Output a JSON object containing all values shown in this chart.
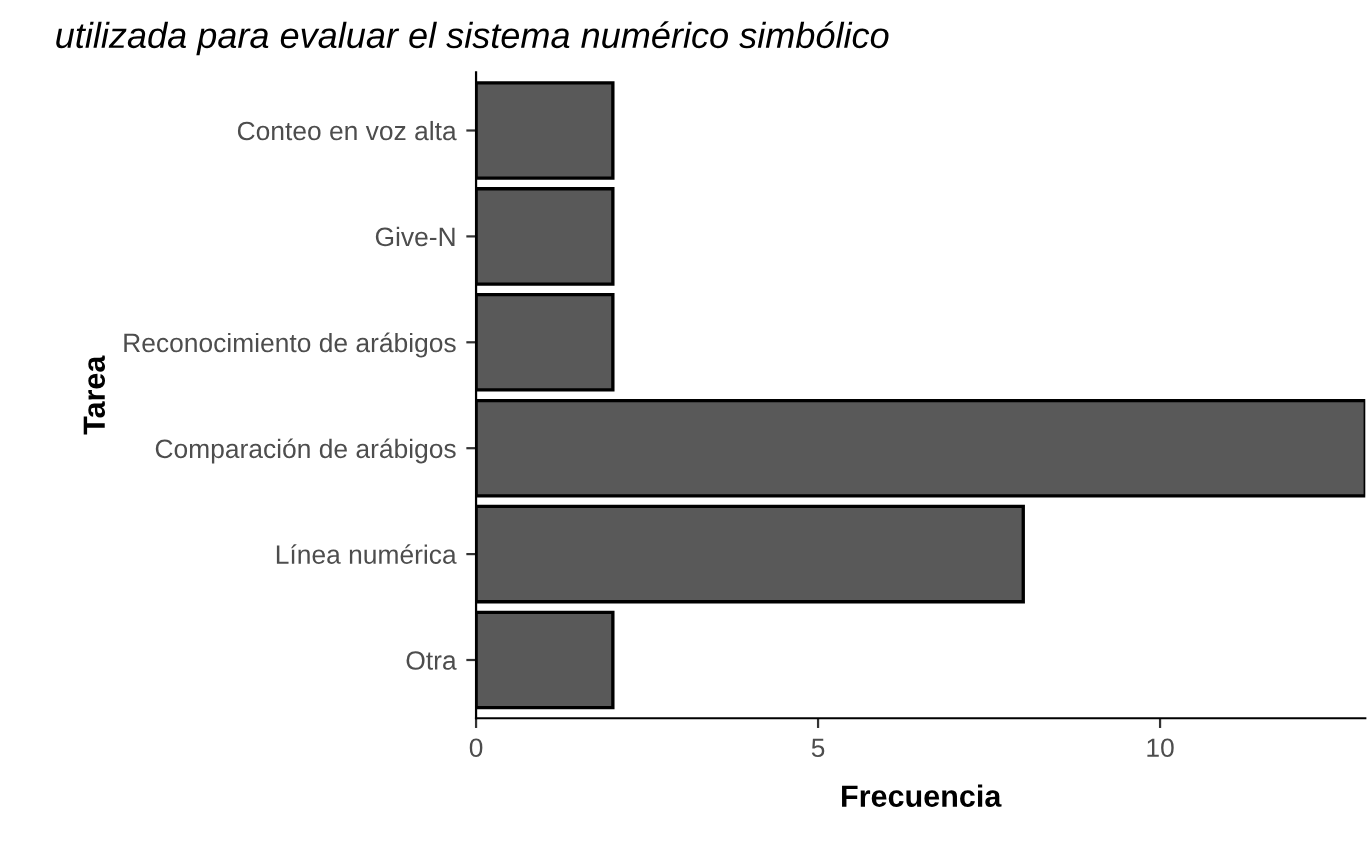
{
  "chart_data": {
    "type": "bar",
    "orientation": "horizontal",
    "title": "utilizada para evaluar el sistema numérico simbólico",
    "xlabel": "Frecuencia",
    "ylabel": "Tarea",
    "categories": [
      "Conteo en voz alta",
      "Give-N",
      "Reconocimiento de arábigos",
      "Comparación de arábigos",
      "Línea numérica",
      "Otra"
    ],
    "values": [
      2,
      2,
      2,
      13,
      8,
      2
    ],
    "color": "#595959",
    "xlim": [
      0,
      13
    ],
    "xticks": [
      0,
      5,
      10
    ],
    "grid": false,
    "legend": false
  }
}
